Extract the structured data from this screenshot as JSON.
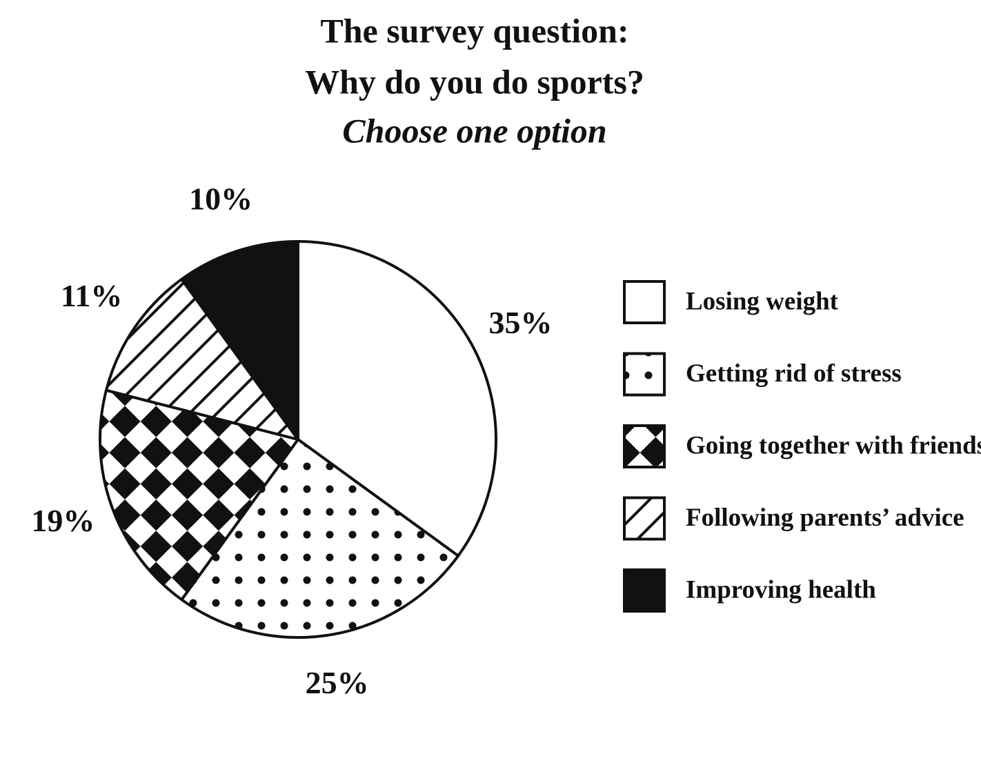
{
  "chart_data": {
    "type": "pie",
    "title": [
      "The survey question:",
      "Why do you do sports?"
    ],
    "subtitle": "Choose one option",
    "categories": [
      "Losing weight",
      "Getting rid of stress",
      "Going together with friends",
      "Following parents’ advice",
      "Improving health"
    ],
    "values": [
      35,
      25,
      19,
      11,
      10
    ],
    "value_labels": [
      "35%",
      "25%",
      "19%",
      "11%",
      "10%"
    ],
    "patterns": [
      "none",
      "dots",
      "checker",
      "hatch",
      "solid"
    ],
    "legend": "right"
  }
}
